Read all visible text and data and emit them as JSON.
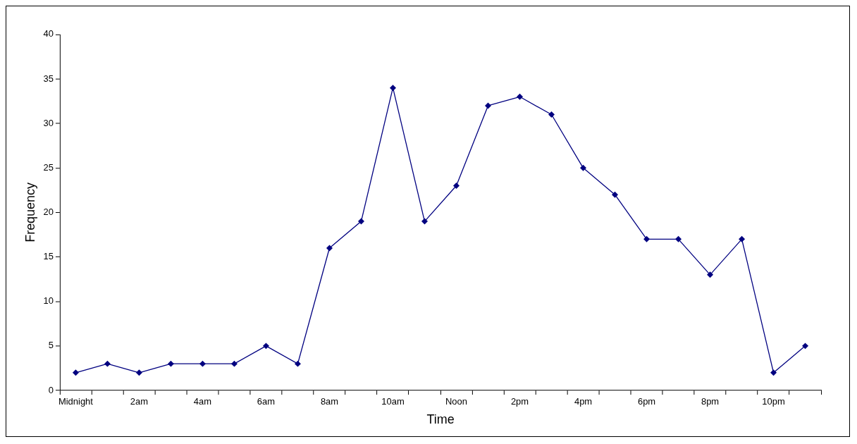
{
  "chart_data": {
    "type": "line",
    "xlabel": "Time",
    "ylabel": "Frequency",
    "categories": [
      "Midnight",
      null,
      "2am",
      null,
      "4am",
      null,
      "6am",
      null,
      "8am",
      null,
      "10am",
      null,
      "Noon",
      null,
      "2pm",
      null,
      "4pm",
      null,
      "6pm",
      null,
      "8pm",
      null,
      "10pm",
      null
    ],
    "series": [
      {
        "color": "#000080",
        "values": [
          2,
          3,
          2,
          3,
          3,
          3,
          5,
          3,
          16,
          19,
          34,
          19,
          23,
          32,
          33,
          31,
          25,
          22,
          17,
          17,
          13,
          17,
          2,
          5
        ]
      }
    ],
    "ylim": [
      0,
      40
    ],
    "yticks": [
      0,
      5,
      10,
      15,
      20,
      25,
      30,
      35,
      40
    ],
    "grid": false,
    "legend": false,
    "marker": "diamond",
    "line_style": "solid"
  }
}
